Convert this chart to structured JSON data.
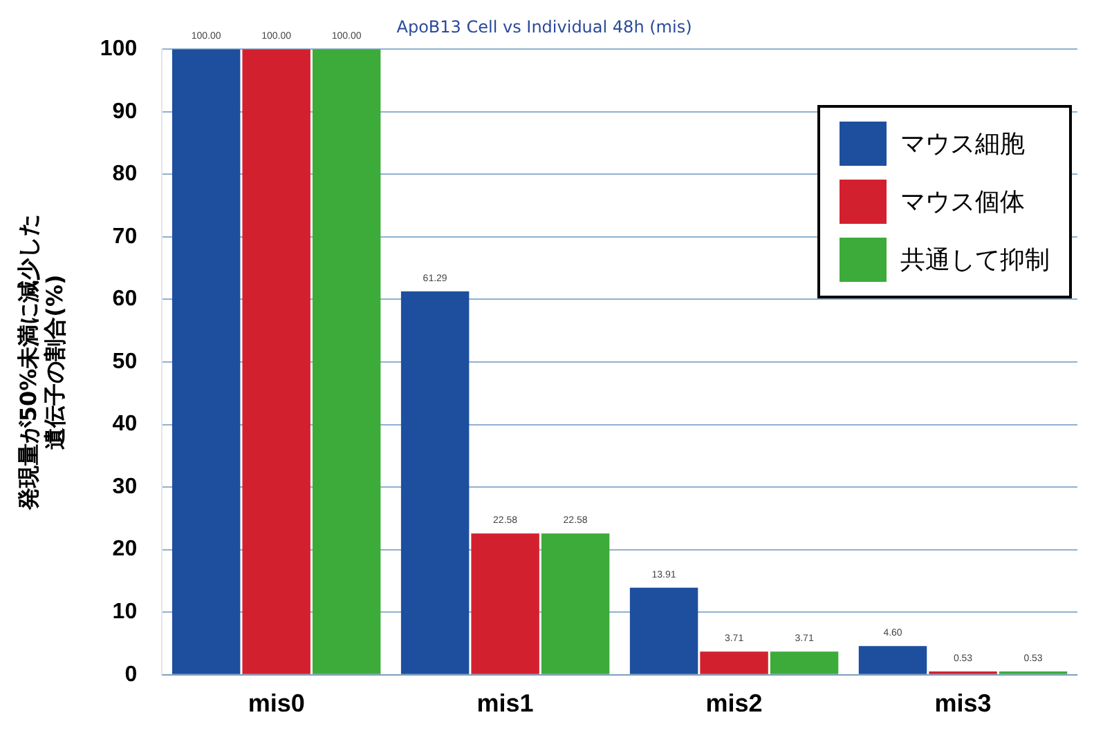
{
  "chart_data": {
    "type": "bar",
    "title": "ApoB13 Cell vs Individual 48h (mis)",
    "ylabel": "発現量が50%未満に減少した遺伝子の割合(%)",
    "categories": [
      "mis0",
      "mis1",
      "mis2",
      "mis3"
    ],
    "series": [
      {
        "name": "マウス細胞",
        "color": "#1d4f9e",
        "values": [
          100.0,
          61.29,
          13.91,
          4.6
        ],
        "value_labels": [
          "100.00",
          "61.29",
          "13.91",
          "4.60"
        ]
      },
      {
        "name": "マウス個体",
        "color": "#d3202f",
        "values": [
          100.0,
          22.58,
          3.71,
          0.53
        ],
        "value_labels": [
          "100.00",
          "22.58",
          "3.71",
          "0.53"
        ]
      },
      {
        "name": "共通して抑制",
        "color": "#3cab3a",
        "values": [
          100.0,
          22.58,
          3.71,
          0.53
        ],
        "value_labels": [
          "100.00",
          "22.58",
          "3.71",
          "0.53"
        ]
      }
    ],
    "ylim": [
      0,
      100
    ],
    "yticks": [
      0,
      10,
      20,
      30,
      40,
      50,
      60,
      70,
      80,
      90,
      100
    ],
    "grid": "y",
    "legend": "top right"
  }
}
